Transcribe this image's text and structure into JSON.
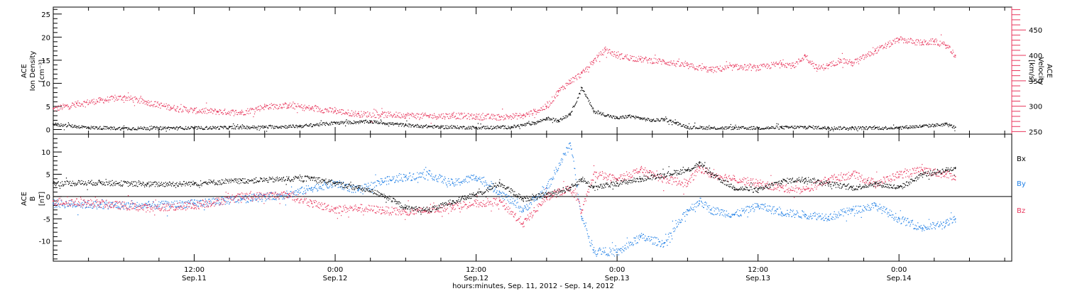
{
  "chart_data": {
    "type": "scatter",
    "x_title": "hours:minutes, Sep. 11, 2012 - Sep. 14, 2012",
    "x_ticks": [
      {
        "hour": 12,
        "time": "12:00",
        "day": "Sep.11"
      },
      {
        "hour": 24,
        "time": "0:00",
        "day": "Sep.12"
      },
      {
        "hour": 36,
        "time": "12:00",
        "day": "Sep.12"
      },
      {
        "hour": 48,
        "time": "0:00",
        "day": "Sep.13"
      },
      {
        "hour": 60,
        "time": "12:00",
        "day": "Sep.13"
      },
      {
        "hour": 72,
        "time": "0:00",
        "day": "Sep.14"
      }
    ],
    "xlim": [
      0,
      81.6
    ],
    "panels": [
      {
        "left_axis": {
          "line1": "ACE",
          "line2": "Ion Density",
          "line3": "[cm⁻³]",
          "ylim": [
            -1,
            26.5
          ],
          "ticks": [
            0,
            5,
            10,
            15,
            20,
            25
          ]
        },
        "right_axis": {
          "line1": "ACE",
          "line2": "Velocity",
          "line3": "[km/s]",
          "ylim": [
            245,
            495
          ],
          "ticks": [
            250,
            300,
            350,
            400,
            450
          ]
        },
        "series": [
          {
            "axis": "left",
            "color": "#000000",
            "x": [
              0,
              3,
              6,
              9,
              12,
              15,
              18,
              21,
              24,
              27,
              30,
              33,
              36,
              39,
              41,
              42,
              43,
              44,
              45,
              46,
              48,
              49,
              50,
              51,
              52,
              53,
              54,
              56,
              58,
              60,
              62,
              64,
              66,
              68,
              70,
              72,
              74,
              75,
              76,
              76.8
            ],
            "values": [
              1.2,
              0.5,
              0.3,
              0.4,
              0.4,
              0.5,
              0.6,
              0.8,
              1.5,
              1.8,
              1.0,
              0.6,
              0.5,
              0.6,
              1.5,
              2.5,
              2.0,
              3.5,
              9.0,
              4.0,
              2.5,
              3.0,
              2.5,
              2.0,
              2.3,
              1.5,
              0.6,
              0.4,
              0.4,
              0.4,
              0.5,
              0.6,
              0.4,
              0.4,
              0.4,
              0.5,
              0.8,
              1.0,
              1.2,
              0.5
            ]
          },
          {
            "axis": "right",
            "color": "#e8365c",
            "x": [
              0,
              2,
              4,
              6,
              8,
              10,
              12,
              14,
              16,
              18,
              20,
              22,
              24,
              26,
              28,
              30,
              32,
              34,
              36,
              38,
              40,
              41,
              42,
              43,
              44,
              45,
              46,
              47,
              48,
              50,
              52,
              54,
              56,
              58,
              60,
              62,
              63,
              64,
              65,
              66,
              67,
              68,
              70,
              72,
              74,
              75,
              76,
              76.8
            ],
            "values": [
              295,
              305,
              312,
              318,
              308,
              298,
              292,
              290,
              288,
              300,
              302,
              296,
              291,
              285,
              284,
              283,
              281,
              282,
              280,
              279,
              282,
              290,
              300,
              330,
              350,
              365,
              390,
              412,
              400,
              393,
              388,
              380,
              372,
              378,
              376,
              385,
              380,
              400,
              375,
              380,
              392,
              385,
              410,
              432,
              425,
              428,
              420,
              400
            ]
          }
        ]
      },
      {
        "left_axis": {
          "line1": "ACE",
          "line2": "B",
          "line3": "[nT]",
          "ylim": [
            -14.5,
            14
          ],
          "ticks": [
            -10,
            -5,
            0,
            5,
            10
          ]
        },
        "legend": [
          {
            "name": "Bx",
            "color": "#000000"
          },
          {
            "name": "By",
            "color": "#1f7fe6"
          },
          {
            "name": "Bz",
            "color": "#e8365c"
          }
        ],
        "series": [
          {
            "name": "Bx",
            "color": "#000000",
            "x": [
              0,
              4,
              8,
              12,
              16,
              20,
              22,
              24,
              26,
              28,
              30,
              32,
              34,
              36,
              38,
              40,
              42,
              44,
              45,
              46,
              48,
              50,
              52,
              54,
              55,
              56,
              58,
              60,
              62,
              64,
              66,
              68,
              70,
              72,
              74,
              76,
              76.8
            ],
            "values": [
              3.0,
              3.2,
              2.8,
              3.0,
              3.6,
              4.0,
              4.2,
              3.0,
              2.0,
              0.5,
              -2.5,
              -3.0,
              -1.0,
              0.5,
              3.0,
              -0.5,
              0.5,
              2.0,
              4.0,
              2.0,
              3.0,
              4.0,
              5.0,
              6.0,
              7.5,
              5.0,
              2.0,
              1.5,
              3.5,
              4.0,
              3.0,
              2.0,
              3.0,
              2.0,
              5.0,
              6.0,
              6.5
            ]
          },
          {
            "name": "By",
            "color": "#1f7fe6",
            "x": [
              0,
              4,
              8,
              12,
              16,
              20,
              22,
              24,
              26,
              28,
              30,
              32,
              34,
              36,
              38,
              40,
              42,
              44,
              45,
              46,
              48,
              50,
              52,
              54,
              55,
              56,
              58,
              60,
              62,
              64,
              66,
              68,
              70,
              72,
              74,
              76,
              76.8
            ],
            "values": [
              -1.5,
              -1.8,
              -2.0,
              -1.5,
              -0.5,
              0.5,
              2.0,
              3.0,
              1.5,
              3.5,
              4.5,
              5.0,
              3.0,
              4.5,
              1.0,
              -3.0,
              2.0,
              12.0,
              -5.0,
              -12.0,
              -12.5,
              -9.0,
              -10.5,
              -3.0,
              -1.0,
              -3.0,
              -4.0,
              -2.0,
              -3.5,
              -4.0,
              -4.5,
              -3.0,
              -2.0,
              -5.0,
              -7.0,
              -6.0,
              -5.0
            ]
          },
          {
            "name": "Bz",
            "color": "#e8365c",
            "x": [
              0,
              4,
              8,
              12,
              16,
              20,
              22,
              24,
              26,
              28,
              30,
              32,
              34,
              36,
              38,
              40,
              42,
              44,
              45,
              46,
              48,
              50,
              52,
              54,
              55,
              56,
              58,
              60,
              62,
              64,
              66,
              68,
              70,
              72,
              74,
              76,
              76.8
            ],
            "values": [
              -1.0,
              -1.5,
              -2.5,
              -2.0,
              0.0,
              0.5,
              -1.5,
              -2.8,
              -2.5,
              -3.0,
              -3.5,
              -3.0,
              -2.0,
              -1.5,
              -1.0,
              -6.0,
              0.0,
              2.0,
              -3.0,
              5.0,
              4.0,
              6.0,
              4.0,
              3.0,
              6.5,
              5.0,
              4.0,
              3.0,
              2.0,
              1.5,
              4.0,
              5.0,
              3.0,
              5.0,
              6.0,
              5.0,
              4.5
            ]
          }
        ]
      }
    ]
  }
}
